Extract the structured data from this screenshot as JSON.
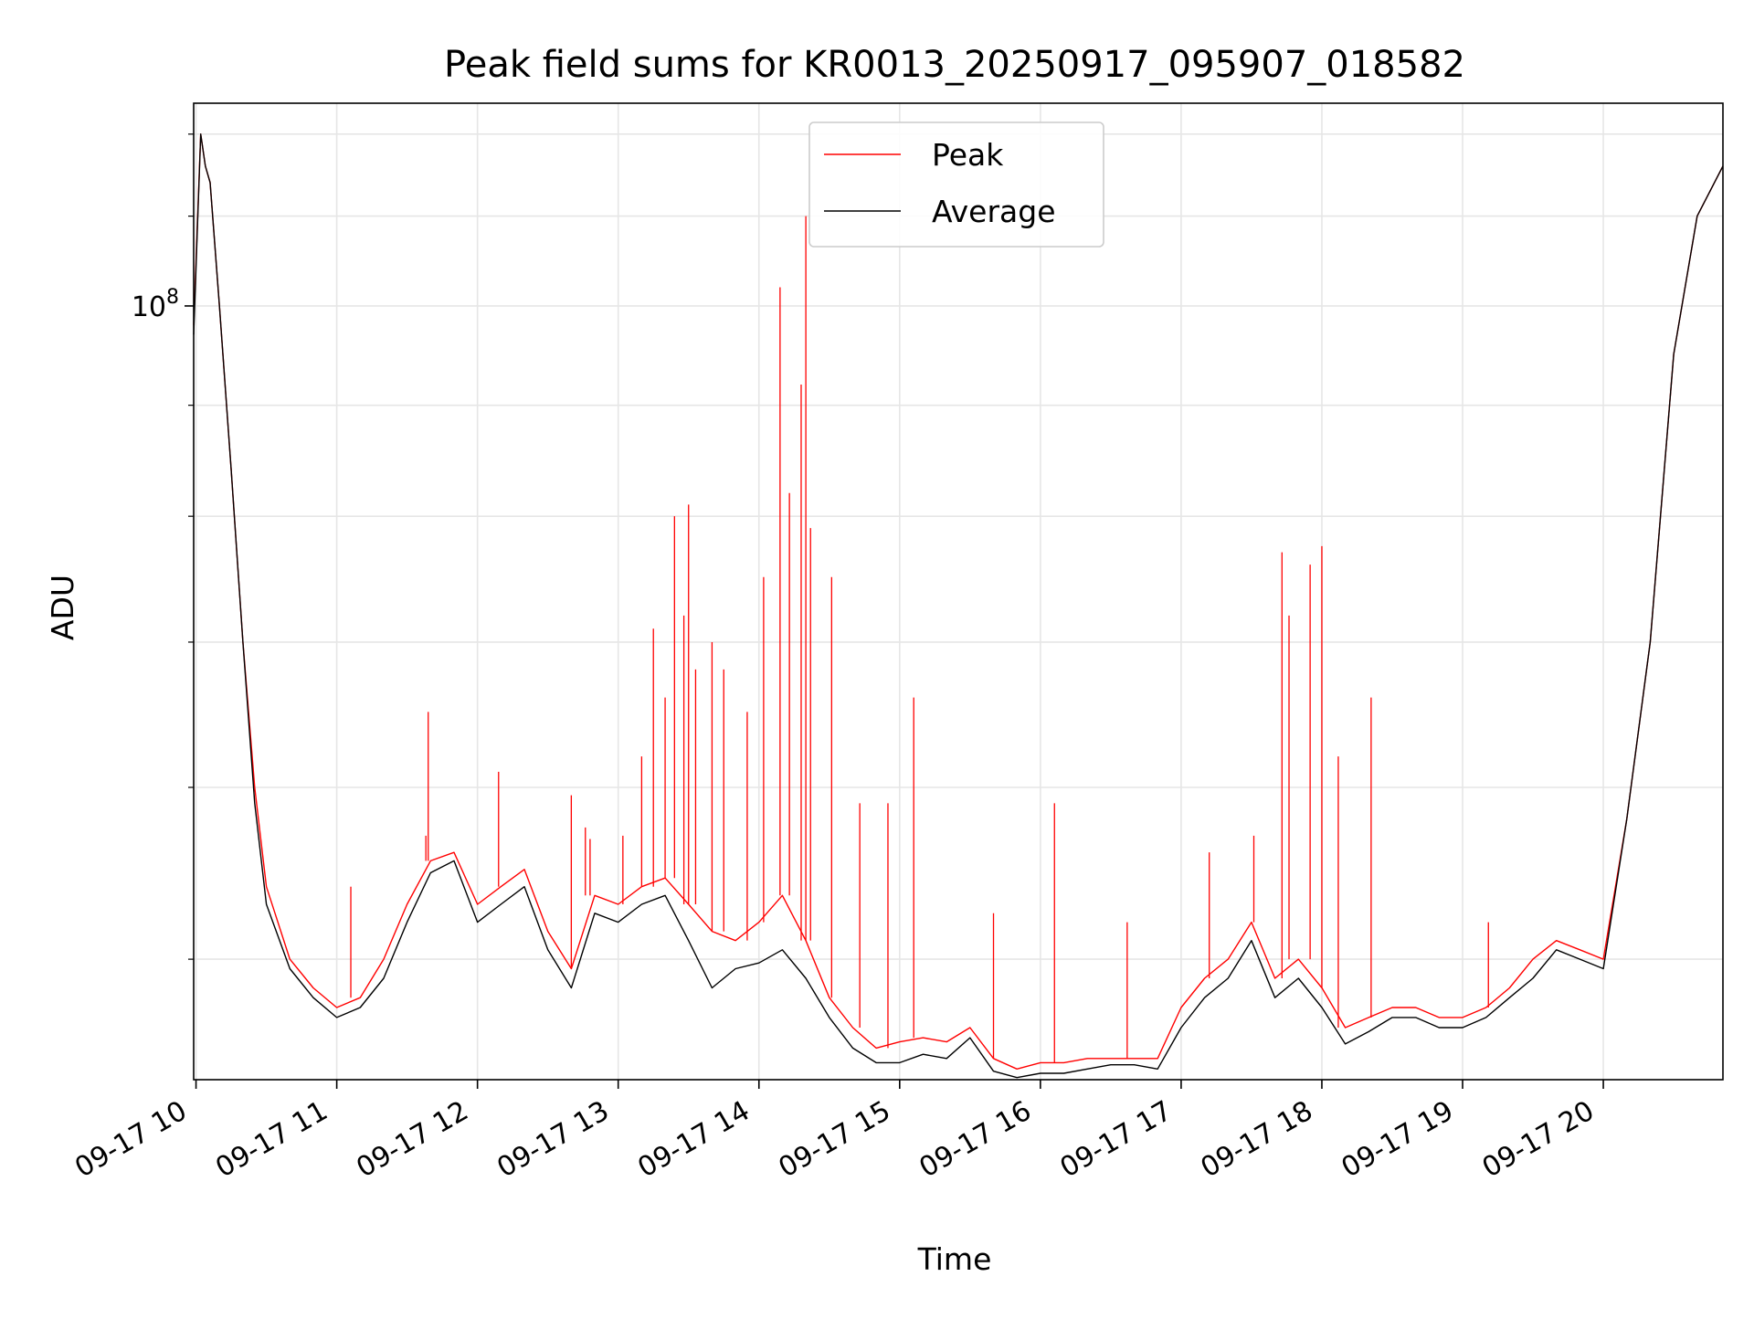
{
  "chart_data": {
    "type": "line",
    "title": "Peak field sums for KR0013_20250917_095907_018582",
    "xlabel": "Time",
    "ylabel": "ADU",
    "y_scale": "log",
    "grid": true,
    "legend_position": "upper center",
    "xlim": [
      "09-17 09:59",
      "09-17 20:51"
    ],
    "ylim": [
      44000000,
      124000000
    ],
    "x_ticks": [
      "09-17 10",
      "09-17 11",
      "09-17 12",
      "09-17 13",
      "09-17 14",
      "09-17 15",
      "09-17 16",
      "09-17 17",
      "09-17 18",
      "09-17 19",
      "09-17 20"
    ],
    "y_ticks": [
      {
        "value": 100000000,
        "base": "10",
        "exponent": "8"
      }
    ],
    "series": [
      {
        "name": "Peak",
        "color": "#ff0000",
        "x": [
          "09-17 09:59",
          "09-17 10:02",
          "09-17 10:04",
          "09-17 10:06",
          "09-17 10:10",
          "09-17 10:15",
          "09-17 10:20",
          "09-17 10:25",
          "09-17 10:30",
          "09-17 10:40",
          "09-17 10:50",
          "09-17 11:00",
          "09-17 11:10",
          "09-17 11:20",
          "09-17 11:30",
          "09-17 11:40",
          "09-17 11:50",
          "09-17 12:00",
          "09-17 12:10",
          "09-17 12:20",
          "09-17 12:30",
          "09-17 12:40",
          "09-17 12:50",
          "09-17 13:00",
          "09-17 13:10",
          "09-17 13:20",
          "09-17 13:30",
          "09-17 13:40",
          "09-17 13:50",
          "09-17 14:00",
          "09-17 14:10",
          "09-17 14:20",
          "09-17 14:30",
          "09-17 14:40",
          "09-17 14:50",
          "09-17 15:00",
          "09-17 15:10",
          "09-17 15:20",
          "09-17 15:30",
          "09-17 15:40",
          "09-17 15:50",
          "09-17 16:00",
          "09-17 16:10",
          "09-17 16:20",
          "09-17 16:30",
          "09-17 16:40",
          "09-17 16:50",
          "09-17 17:00",
          "09-17 17:10",
          "09-17 17:20",
          "09-17 17:30",
          "09-17 17:40",
          "09-17 17:50",
          "09-17 18:00",
          "09-17 18:10",
          "09-17 18:20",
          "09-17 18:30",
          "09-17 18:40",
          "09-17 18:50",
          "09-17 19:00",
          "09-17 19:10",
          "09-17 19:20",
          "09-17 19:30",
          "09-17 19:40",
          "09-17 19:50",
          "09-17 20:00",
          "09-17 20:10",
          "09-17 20:20",
          "09-17 20:30",
          "09-17 20:40",
          "09-17 20:51"
        ],
        "y": [
          98000000,
          120000000,
          116000000,
          114000000,
          100000000,
          84000000,
          70000000,
          60000000,
          54000000,
          50000000,
          48500000,
          47500000,
          48000000,
          50000000,
          53000000,
          55500000,
          56000000,
          53000000,
          54000000,
          55000000,
          51500000,
          49500000,
          53500000,
          53000000,
          54000000,
          54500000,
          53000000,
          51500000,
          51000000,
          52000000,
          53500000,
          51000000,
          48000000,
          46500000,
          45500000,
          45800000,
          46000000,
          45800000,
          46500000,
          45000000,
          44500000,
          44800000,
          44800000,
          45000000,
          45000000,
          45000000,
          45000000,
          47500000,
          49000000,
          50000000,
          52000000,
          49000000,
          50000000,
          48500000,
          46500000,
          47000000,
          47500000,
          47500000,
          47000000,
          47000000,
          47500000,
          48500000,
          50000000,
          51000000,
          50500000,
          50000000,
          58000000,
          70000000,
          95000000,
          110000000,
          116000000
        ],
        "spikes": [
          {
            "x": "09-17 11:06",
            "y": 54000000
          },
          {
            "x": "09-17 11:38",
            "y": 57000000
          },
          {
            "x": "09-17 11:39",
            "y": 65000000
          },
          {
            "x": "09-17 12:09",
            "y": 61000000
          },
          {
            "x": "09-17 12:40",
            "y": 59500000
          },
          {
            "x": "09-17 12:46",
            "y": 57500000
          },
          {
            "x": "09-17 12:48",
            "y": 56800000
          },
          {
            "x": "09-17 13:02",
            "y": 57000000
          },
          {
            "x": "09-17 13:10",
            "y": 62000000
          },
          {
            "x": "09-17 13:15",
            "y": 71000000
          },
          {
            "x": "09-17 13:20",
            "y": 66000000
          },
          {
            "x": "09-17 13:24",
            "y": 80000000
          },
          {
            "x": "09-17 13:28",
            "y": 72000000
          },
          {
            "x": "09-17 13:30",
            "y": 81000000
          },
          {
            "x": "09-17 13:33",
            "y": 68000000
          },
          {
            "x": "09-17 13:40",
            "y": 70000000
          },
          {
            "x": "09-17 13:45",
            "y": 68000000
          },
          {
            "x": "09-17 13:55",
            "y": 65000000
          },
          {
            "x": "09-17 14:02",
            "y": 75000000
          },
          {
            "x": "09-17 14:09",
            "y": 102000000
          },
          {
            "x": "09-17 14:13",
            "y": 82000000
          },
          {
            "x": "09-17 14:18",
            "y": 92000000
          },
          {
            "x": "09-17 14:20",
            "y": 110000000
          },
          {
            "x": "09-17 14:22",
            "y": 79000000
          },
          {
            "x": "09-17 14:31",
            "y": 75000000
          },
          {
            "x": "09-17 14:43",
            "y": 59000000
          },
          {
            "x": "09-17 14:55",
            "y": 59000000
          },
          {
            "x": "09-17 15:06",
            "y": 66000000
          },
          {
            "x": "09-17 15:40",
            "y": 52500000
          },
          {
            "x": "09-17 16:06",
            "y": 59000000
          },
          {
            "x": "09-17 16:37",
            "y": 52000000
          },
          {
            "x": "09-17 17:12",
            "y": 56000000
          },
          {
            "x": "09-17 17:31",
            "y": 57000000
          },
          {
            "x": "09-17 17:43",
            "y": 77000000
          },
          {
            "x": "09-17 17:46",
            "y": 72000000
          },
          {
            "x": "09-17 17:55",
            "y": 76000000
          },
          {
            "x": "09-17 18:00",
            "y": 77500000
          },
          {
            "x": "09-17 18:07",
            "y": 62000000
          },
          {
            "x": "09-17 18:21",
            "y": 66000000
          },
          {
            "x": "09-17 19:11",
            "y": 52000000
          }
        ]
      },
      {
        "name": "Average",
        "color": "#000000",
        "x": [
          "09-17 09:59",
          "09-17 10:02",
          "09-17 10:04",
          "09-17 10:06",
          "09-17 10:10",
          "09-17 10:15",
          "09-17 10:20",
          "09-17 10:25",
          "09-17 10:30",
          "09-17 10:40",
          "09-17 10:50",
          "09-17 11:00",
          "09-17 11:10",
          "09-17 11:20",
          "09-17 11:30",
          "09-17 11:40",
          "09-17 11:50",
          "09-17 12:00",
          "09-17 12:10",
          "09-17 12:20",
          "09-17 12:30",
          "09-17 12:40",
          "09-17 12:50",
          "09-17 13:00",
          "09-17 13:10",
          "09-17 13:20",
          "09-17 13:30",
          "09-17 13:40",
          "09-17 13:50",
          "09-17 14:00",
          "09-17 14:10",
          "09-17 14:20",
          "09-17 14:30",
          "09-17 14:40",
          "09-17 14:50",
          "09-17 15:00",
          "09-17 15:10",
          "09-17 15:20",
          "09-17 15:30",
          "09-17 15:40",
          "09-17 15:50",
          "09-17 16:00",
          "09-17 16:10",
          "09-17 16:20",
          "09-17 16:30",
          "09-17 16:40",
          "09-17 16:50",
          "09-17 17:00",
          "09-17 17:10",
          "09-17 17:20",
          "09-17 17:30",
          "09-17 17:40",
          "09-17 17:50",
          "09-17 18:00",
          "09-17 18:10",
          "09-17 18:20",
          "09-17 18:30",
          "09-17 18:40",
          "09-17 18:50",
          "09-17 19:00",
          "09-17 19:10",
          "09-17 19:20",
          "09-17 19:30",
          "09-17 19:40",
          "09-17 19:50",
          "09-17 20:00",
          "09-17 20:10",
          "09-17 20:20",
          "09-17 20:30",
          "09-17 20:40",
          "09-17 20:51"
        ],
        "y": [
          97000000,
          120000000,
          116000000,
          114000000,
          100000000,
          84000000,
          70000000,
          59000000,
          53000000,
          49500000,
          48000000,
          47000000,
          47500000,
          49000000,
          52000000,
          54800000,
          55500000,
          52000000,
          53000000,
          54000000,
          50500000,
          48500000,
          52500000,
          52000000,
          53000000,
          53500000,
          51000000,
          48500000,
          49500000,
          49800000,
          50500000,
          49000000,
          47000000,
          45500000,
          44800000,
          44800000,
          45200000,
          45000000,
          46000000,
          44400000,
          44100000,
          44300000,
          44300000,
          44500000,
          44700000,
          44700000,
          44500000,
          46500000,
          48000000,
          49000000,
          51000000,
          48000000,
          49000000,
          47500000,
          45700000,
          46300000,
          47000000,
          47000000,
          46500000,
          46500000,
          47000000,
          48000000,
          49000000,
          50500000,
          50000000,
          49500000,
          58000000,
          70000000,
          95000000,
          110000000,
          116000000
        ]
      }
    ]
  }
}
